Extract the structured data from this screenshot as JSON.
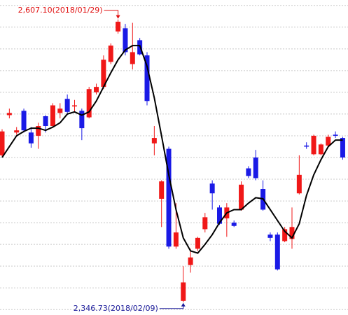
{
  "chart_data": {
    "type": "candlestick",
    "open": [
      2482,
      2519,
      2503,
      2523,
      2503,
      2500,
      2518,
      2509,
      2521,
      2534,
      2527,
      2523,
      2517,
      2540,
      2545,
      2568,
      2596,
      2599,
      2566,
      2588,
      2574,
      2493,
      2442,
      2488,
      2398,
      2348,
      2381,
      2396,
      2414,
      2456,
      2434,
      2424,
      2420,
      2432,
      2470,
      2480,
      2451,
      2409,
      2409,
      2403,
      2405,
      2447,
      2491,
      2483,
      2483,
      2491,
      2501,
      2498
    ],
    "high": [
      2506,
      2525,
      2508,
      2525,
      2508,
      2512,
      2519,
      2530,
      2530,
      2538,
      2533,
      2525,
      2545,
      2548,
      2574,
      2585,
      2607.1,
      2603,
      2604,
      2590,
      2577,
      2509,
      2459,
      2490,
      2438,
      2380,
      2396,
      2407,
      2429,
      2459,
      2436,
      2438,
      2422,
      2458,
      2472,
      2487,
      2459,
      2411,
      2411,
      2416,
      2434,
      2482,
      2494,
      2501,
      2493,
      2501,
      2504,
      2499
    ],
    "low": [
      2481,
      2516,
      2501,
      2503,
      2489,
      2488,
      2503,
      2508,
      2516,
      2519,
      2522,
      2496,
      2516,
      2538,
      2543,
      2566,
      2594,
      2574,
      2561,
      2574,
      2528,
      2482,
      2416,
      2396,
      2396,
      2346.73,
      2374,
      2394,
      2411,
      2432,
      2418,
      2407,
      2416,
      2431,
      2461,
      2459,
      2431,
      2403,
      2376,
      2402,
      2396,
      2446,
      2488,
      2482,
      2482,
      2490,
      2498,
      2478
    ],
    "close": [
      2504,
      2521,
      2505,
      2505,
      2493,
      2509,
      2509,
      2528,
      2525,
      2522,
      2528,
      2507,
      2543,
      2545,
      2570,
      2583,
      2605,
      2577,
      2577,
      2575,
      2532,
      2498,
      2458,
      2398,
      2411,
      2365,
      2388,
      2406,
      2425,
      2447,
      2419,
      2434,
      2417,
      2455,
      2463,
      2461,
      2432,
      2406,
      2377,
      2414,
      2416,
      2464,
      2490,
      2500,
      2492,
      2499,
      2500,
      2480
    ],
    "ma": [
      2480,
      2490,
      2500,
      2504,
      2507,
      2507,
      2505,
      2508,
      2512,
      2520,
      2522,
      2519,
      2522,
      2532,
      2545,
      2558,
      2570,
      2579,
      2583,
      2583,
      2564,
      2535,
      2500,
      2464,
      2432,
      2406,
      2394,
      2392,
      2400,
      2409,
      2420,
      2429,
      2432,
      2432,
      2438,
      2443,
      2442,
      2432,
      2422,
      2412,
      2406,
      2419,
      2445,
      2464,
      2478,
      2490,
      2496,
      2496
    ],
    "up_color": "#f01818",
    "down_color": "#1a1ae6",
    "ma_color": "#000000",
    "ylim": [
      2335,
      2625
    ],
    "yticks": [
      2340,
      2360,
      2380,
      2400,
      2420,
      2440,
      2460,
      2480,
      2500,
      2520,
      2540,
      2560,
      2580,
      2600,
      2620
    ],
    "grid": true,
    "annotations": [
      {
        "text": "2,607.10(2018/01/29)",
        "color": "#e01010"
      },
      {
        "text": "2,346.73(2018/02/09)",
        "color": "#1a1a9a"
      }
    ]
  }
}
